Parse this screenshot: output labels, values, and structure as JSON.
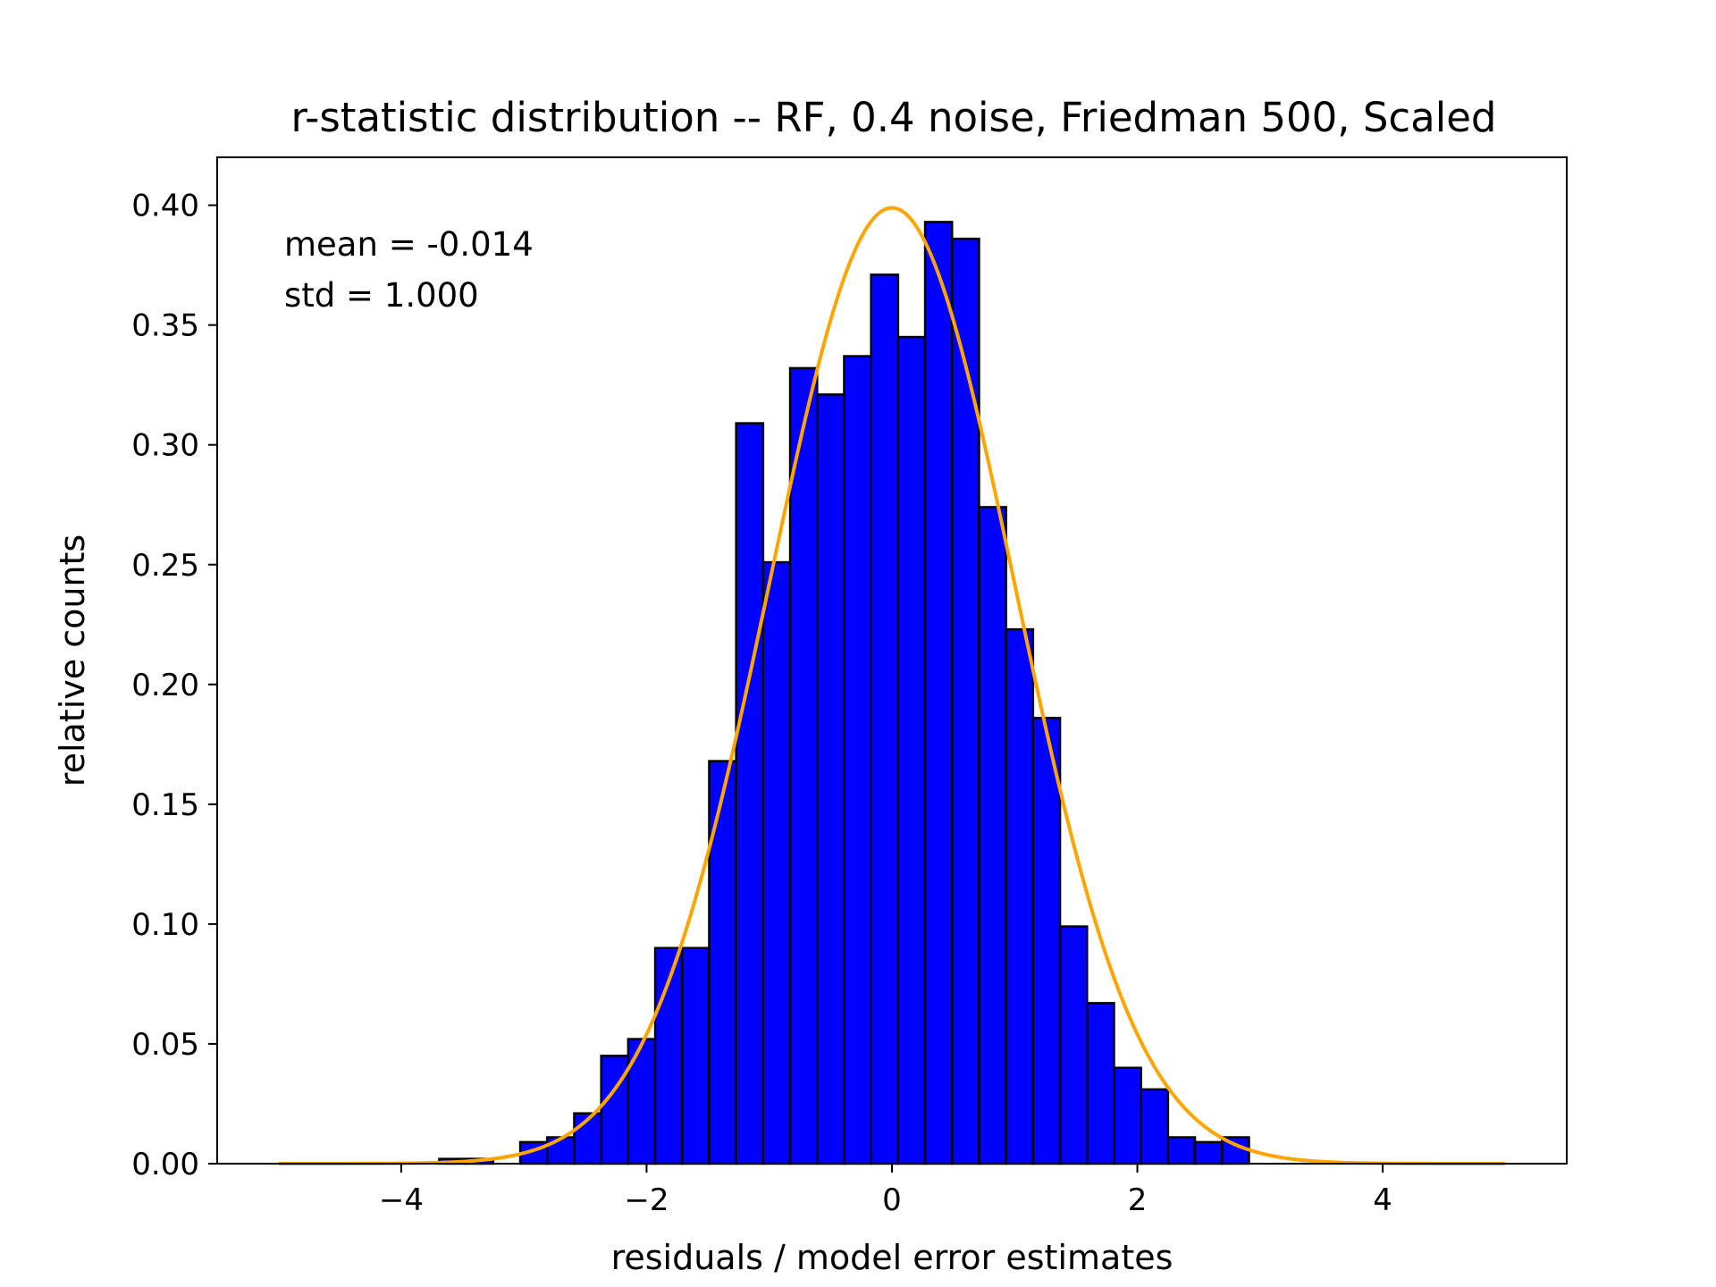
{
  "chart_data": {
    "type": "bar",
    "title": "r-statistic distribution -- RF, 0.4 noise, Friedman 500, Scaled",
    "xlabel": "residuals / model error estimates",
    "ylabel": "relative counts",
    "xlim": [
      -5.5,
      5.5
    ],
    "ylim": [
      0.0,
      0.42
    ],
    "xticks": [
      -4,
      -2,
      0,
      2,
      4
    ],
    "xtick_labels": [
      "−4",
      "−2",
      "0",
      "2",
      "4"
    ],
    "yticks": [
      0.0,
      0.05,
      0.1,
      0.15,
      0.2,
      0.25,
      0.3,
      0.35,
      0.4
    ],
    "ytick_labels": [
      "0.00",
      "0.05",
      "0.10",
      "0.15",
      "0.20",
      "0.25",
      "0.30",
      "0.35",
      "0.40"
    ],
    "grid": false,
    "annotations": [
      "mean = -0.014",
      "std = 1.000"
    ],
    "histogram": {
      "color": "#0000ff",
      "edge_color": "#000000",
      "bin_edges": [
        -3.69,
        -3.47,
        -3.25,
        -3.03,
        -2.81,
        -2.59,
        -2.37,
        -2.15,
        -1.93,
        -1.71,
        -1.49,
        -1.27,
        -1.05,
        -0.83,
        -0.61,
        -0.39,
        -0.17,
        0.05,
        0.27,
        0.49,
        0.71,
        0.93,
        1.15,
        1.37,
        1.59,
        1.81,
        2.03,
        2.25,
        2.47,
        2.69,
        2.91,
        3.13
      ],
      "values": [
        0.002,
        0.002,
        0.0,
        0.009,
        0.011,
        0.021,
        0.045,
        0.052,
        0.09,
        0.09,
        0.168,
        0.309,
        0.251,
        0.332,
        0.321,
        0.337,
        0.371,
        0.345,
        0.393,
        0.386,
        0.274,
        0.223,
        0.186,
        0.099,
        0.067,
        0.04,
        0.031,
        0.011,
        0.009,
        0.011,
        0.0
      ]
    },
    "curve": {
      "type": "normal_pdf",
      "color": "#ffa500",
      "mean": 0.0,
      "std": 1.0,
      "x_range": [
        -5,
        5
      ]
    }
  }
}
